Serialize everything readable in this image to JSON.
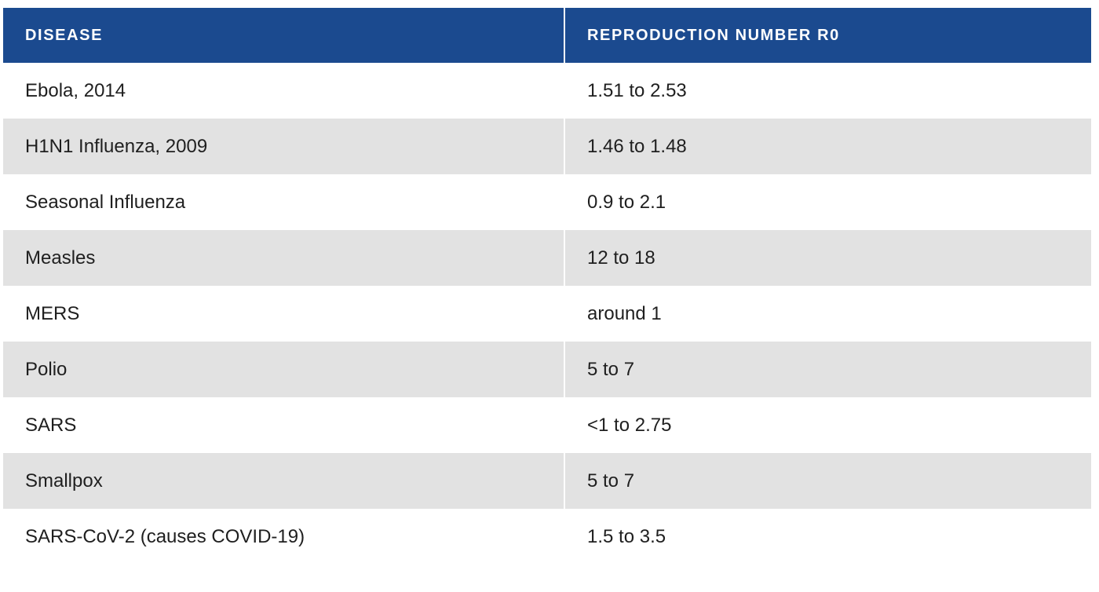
{
  "table": {
    "headers": {
      "disease": "DISEASE",
      "r0": "REPRODUCTION NUMBER R0"
    },
    "rows": [
      {
        "disease": "Ebola, 2014",
        "r0": "1.51 to 2.53"
      },
      {
        "disease": "H1N1 Influenza, 2009",
        "r0": "1.46 to 1.48"
      },
      {
        "disease": "Seasonal Influenza",
        "r0": "0.9 to 2.1"
      },
      {
        "disease": "Measles",
        "r0": "12 to 18"
      },
      {
        "disease": "MERS",
        "r0": "around 1"
      },
      {
        "disease": "Polio",
        "r0": "5 to 7"
      },
      {
        "disease": "SARS",
        "r0": "<1 to 2.75"
      },
      {
        "disease": "Smallpox",
        "r0": "5 to 7"
      },
      {
        "disease": "SARS-CoV-2 (causes COVID-19)",
        "r0": "1.5 to 3.5"
      }
    ],
    "colors": {
      "header_bg": "#1b4a8f",
      "header_text": "#ffffff",
      "shaded_row_bg": "#e2e2e2",
      "plain_row_bg": "#ffffff",
      "body_text": "#1f1f1f"
    }
  }
}
